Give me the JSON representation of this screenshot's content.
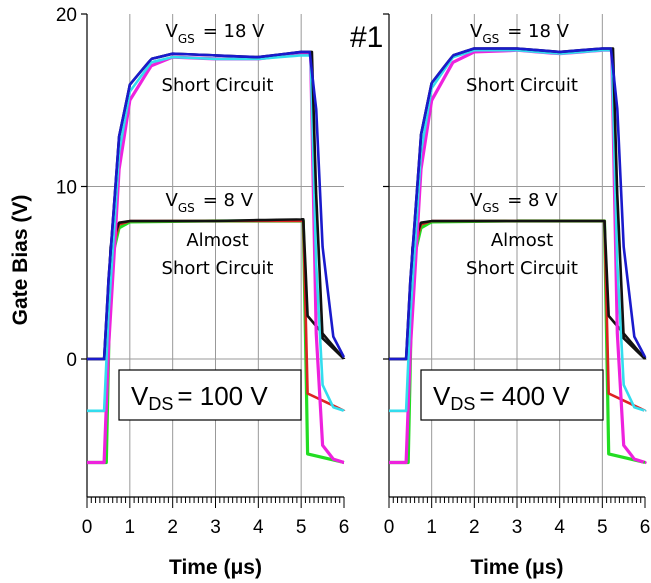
{
  "figure_label": "#1",
  "y_axis_title": "Gate Bias (V)",
  "x_axis_title": "Time (μs)",
  "y_tick_labels": [
    "0",
    "10",
    "20"
  ],
  "x_tick_labels": [
    "0",
    "1",
    "2",
    "3",
    "4",
    "5",
    "6"
  ],
  "annotations": {
    "vgs_high_prefix": "V",
    "vgs_high_sub": "GS",
    "vgs_high_value": "= 18 V",
    "vgs_low_prefix": "V",
    "vgs_low_sub": "GS",
    "vgs_low_value": "= 8 V",
    "short_circuit": "Short Circuit",
    "almost_line1": "Almost",
    "almost_line2": "Short Circuit"
  },
  "panels": [
    {
      "vds_prefix": "V",
      "vds_sub": "DS",
      "vds_value": "= 100 V"
    },
    {
      "vds_prefix": "V",
      "vds_sub": "DS",
      "vds_value": "= 400 V"
    }
  ],
  "colors": {
    "black": "#111111",
    "blue": "#1a1acc",
    "cyan": "#33ddee",
    "magenta": "#ee22dd",
    "green": "#22dd22",
    "red": "#dd2222",
    "grid": "#999999"
  },
  "chart_data": [
    {
      "type": "line",
      "title": "",
      "xlabel": "Time (μs)",
      "ylabel": "Gate Bias (V)",
      "xlim": [
        0,
        6
      ],
      "ylim": [
        -8,
        20
      ],
      "grid": true,
      "series": [
        {
          "color": "blue",
          "baseline": 0,
          "level": 17.8,
          "rise_start": 0.45,
          "fall_start": 5.2,
          "tau_rise": 0.25,
          "tau_fall": 0.18,
          "fall_delay": 0.05,
          "points_x": [
            0,
            0.4,
            0.5,
            0.75,
            1,
            1.5,
            2,
            3,
            4,
            5,
            5.2,
            5.35,
            5.5,
            5.75,
            6
          ],
          "points_y": [
            0,
            0,
            4.5,
            12.9,
            15.9,
            17.4,
            17.7,
            17.6,
            17.5,
            17.8,
            17.8,
            14.5,
            6.5,
            1.3,
            0.1
          ]
        },
        {
          "color": "black",
          "baseline": 0,
          "level": 17.8,
          "rise_start": 0.45,
          "fall_start": 5.25,
          "tau_rise": 0.25,
          "tau_fall": 0.1,
          "fall_delay": 0.02,
          "points_x": [
            0,
            0.4,
            0.5,
            0.75,
            1,
            1.5,
            2,
            3,
            4,
            5,
            5.25,
            5.35,
            5.5,
            6
          ],
          "points_y": [
            0,
            0,
            4.5,
            12.9,
            15.9,
            17.4,
            17.7,
            17.6,
            17.5,
            17.8,
            17.8,
            9.5,
            1.2,
            0
          ]
        },
        {
          "color": "cyan",
          "baseline": -3,
          "level": 17.6,
          "rise_start": 0.45,
          "fall_start": 5.22,
          "tau_rise": 0.25,
          "tau_fall": 0.1,
          "fall_delay": 0.02,
          "points_x": [
            0,
            0.4,
            0.5,
            0.75,
            1,
            1.5,
            2,
            3,
            4,
            5,
            5.22,
            5.35,
            5.5,
            5.75,
            6
          ],
          "points_y": [
            -3,
            -3,
            2.5,
            12,
            15.5,
            17.2,
            17.5,
            17.4,
            17.4,
            17.6,
            17.6,
            5.5,
            -1.5,
            -2.8,
            -3
          ]
        },
        {
          "color": "magenta",
          "baseline": -6,
          "level": 17.7,
          "rise_start": 0.45,
          "fall_start": 5.22,
          "tau_rise": 0.28,
          "tau_fall": 0.08,
          "fall_delay": 0.0,
          "points_x": [
            0,
            0.4,
            0.5,
            0.75,
            1,
            1.5,
            2,
            3,
            4,
            5,
            5.22,
            5.35,
            5.5,
            5.75,
            6
          ],
          "points_y": [
            -6,
            -6,
            0.5,
            11,
            15,
            17,
            17.5,
            17.4,
            17.4,
            17.7,
            17.7,
            1.5,
            -5,
            -5.8,
            -6
          ]
        },
        {
          "color": "black",
          "baseline": 0,
          "level": 8.1,
          "rise_start": 0.45,
          "fall_start": 5.05,
          "tau_rise": 0.08,
          "tau_fall": 0.05,
          "fall_delay": 0.0,
          "points_x": [
            0,
            0.45,
            0.55,
            0.75,
            1,
            3,
            5,
            5.05,
            5.15,
            6
          ],
          "points_y": [
            0,
            0,
            6.5,
            7.9,
            8,
            8,
            8.1,
            8.1,
            2.5,
            0
          ]
        },
        {
          "color": "red",
          "baseline": -3,
          "level": 8.0,
          "rise_start": 0.45,
          "fall_start": 5.05,
          "tau_rise": 0.08,
          "tau_fall": 0.05,
          "fall_delay": 0.0,
          "points_x": [
            0,
            0.45,
            0.55,
            0.75,
            1,
            3,
            5,
            5.05,
            5.15,
            6
          ],
          "points_y": [
            -3,
            -3,
            6,
            7.8,
            8,
            8,
            8,
            8,
            -2,
            -3
          ]
        },
        {
          "color": "green",
          "baseline": -6,
          "level": 8.0,
          "rise_start": 0.45,
          "fall_start": 5.05,
          "tau_rise": 0.1,
          "tau_fall": 0.05,
          "fall_delay": 0.0,
          "points_x": [
            0,
            0.45,
            0.55,
            0.75,
            1,
            3,
            5,
            5.05,
            5.15,
            6
          ],
          "points_y": [
            -6,
            -6,
            5.5,
            7.6,
            7.95,
            8,
            8,
            8,
            -5.5,
            -6
          ]
        }
      ],
      "x_tick_labels": [
        "0",
        "1",
        "2",
        "3",
        "4",
        "5",
        "6"
      ],
      "y_tick_labels": [
        "0",
        "10",
        "20"
      ]
    },
    {
      "type": "line",
      "title": "",
      "xlabel": "Time (μs)",
      "ylabel": "",
      "xlim": [
        0,
        6
      ],
      "ylim": [
        -8,
        20
      ],
      "grid": true,
      "series": [
        {
          "color": "blue",
          "baseline": 0,
          "level": 18.0,
          "points_x": [
            0,
            0.4,
            0.5,
            0.75,
            1,
            1.5,
            2,
            3,
            4,
            5,
            5.2,
            5.35,
            5.5,
            5.75,
            6
          ],
          "points_y": [
            0,
            0,
            4.5,
            13,
            16,
            17.6,
            18,
            18,
            17.8,
            18,
            18,
            14.5,
            6.5,
            1.3,
            0.1
          ]
        },
        {
          "color": "black",
          "baseline": 0,
          "level": 18.0,
          "points_x": [
            0,
            0.4,
            0.5,
            0.75,
            1,
            1.5,
            2,
            3,
            4,
            5,
            5.25,
            5.35,
            5.5,
            6
          ],
          "points_y": [
            0,
            0,
            4.5,
            13,
            16,
            17.6,
            18,
            18,
            17.8,
            18,
            18,
            9.5,
            1.2,
            0
          ]
        },
        {
          "color": "cyan",
          "baseline": -3,
          "level": 17.9,
          "points_x": [
            0,
            0.4,
            0.5,
            0.75,
            1,
            1.5,
            2,
            3,
            4,
            5,
            5.22,
            5.35,
            5.5,
            5.75,
            6
          ],
          "points_y": [
            -3,
            -3,
            2.5,
            12,
            15.7,
            17.5,
            17.9,
            17.9,
            17.7,
            17.9,
            17.9,
            5.5,
            -1.5,
            -2.8,
            -3
          ]
        },
        {
          "color": "magenta",
          "baseline": -6,
          "level": 17.9,
          "points_x": [
            0,
            0.4,
            0.5,
            0.75,
            1,
            1.5,
            2,
            3,
            4,
            5,
            5.22,
            5.35,
            5.5,
            5.75,
            6
          ],
          "points_y": [
            -6,
            -6,
            0.5,
            11,
            15,
            17.2,
            17.8,
            17.9,
            17.7,
            17.9,
            17.9,
            1.5,
            -5,
            -5.8,
            -6
          ]
        },
        {
          "color": "black",
          "baseline": 0,
          "level": 8.0,
          "points_x": [
            0,
            0.45,
            0.55,
            0.75,
            1,
            3,
            5,
            5.05,
            5.15,
            6
          ],
          "points_y": [
            0,
            0,
            6.5,
            7.9,
            8,
            8,
            8,
            8,
            2.5,
            0
          ]
        },
        {
          "color": "red",
          "baseline": -3,
          "level": 8.0,
          "points_x": [
            0,
            0.45,
            0.55,
            0.75,
            1,
            3,
            5,
            5.05,
            5.15,
            6
          ],
          "points_y": [
            -3,
            -3,
            6,
            7.8,
            8,
            8,
            8,
            8,
            -2,
            -3
          ]
        },
        {
          "color": "green",
          "baseline": -6,
          "level": 8.0,
          "points_x": [
            0,
            0.45,
            0.55,
            0.75,
            1,
            3,
            5,
            5.05,
            5.15,
            6
          ],
          "points_y": [
            -6,
            -6,
            5.5,
            7.6,
            7.95,
            8,
            8,
            8,
            -5.5,
            -6
          ]
        }
      ],
      "x_tick_labels": [
        "0",
        "1",
        "2",
        "3",
        "4",
        "5",
        "6"
      ],
      "y_tick_labels": []
    }
  ]
}
